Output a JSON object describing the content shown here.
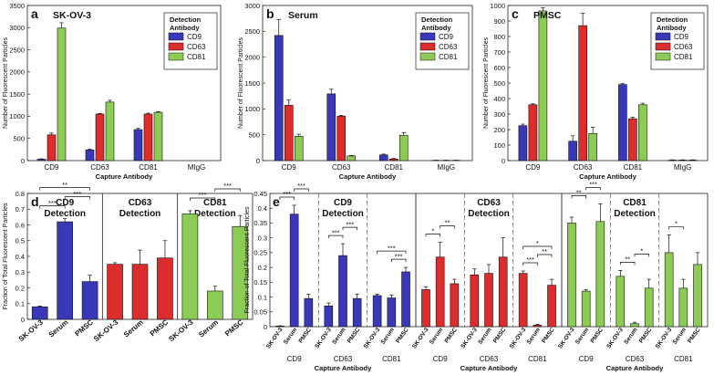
{
  "colors": {
    "CD9": "#3838b8",
    "CD63": "#dc2c2c",
    "CD81": "#8ccc54",
    "edge": "#1a1a1a"
  },
  "top_axis": {
    "xlabel": "Capture Antibody",
    "ylabel": "Number of Fluorescent Particles"
  },
  "bottom_axis": {
    "ylabel": "Fraction of Total Fluorescent Particles"
  },
  "chart_data": [
    {
      "panel": "a",
      "type": "bar",
      "title": "SK-OV-3",
      "categories": [
        "CD9",
        "CD63",
        "CD81",
        "MIgG"
      ],
      "ylim": [
        0,
        3500
      ],
      "yticks": [
        0,
        500,
        1000,
        1500,
        2000,
        2500,
        3000,
        3500
      ],
      "xlabel": "",
      "ylabel": "Number of Fluorescent Particles",
      "legend": {
        "title": "Detection Antibody",
        "entries": [
          "CD9",
          "CD63",
          "CD81"
        ],
        "placement": "top-right"
      },
      "series": [
        {
          "name": "CD9",
          "values": [
            30,
            240,
            700,
            0
          ],
          "errors": [
            10,
            15,
            25,
            0
          ]
        },
        {
          "name": "CD63",
          "values": [
            580,
            1050,
            1050,
            0
          ],
          "errors": [
            40,
            15,
            20,
            0
          ]
        },
        {
          "name": "CD81",
          "values": [
            2990,
            1320,
            1090,
            0
          ],
          "errors": [
            120,
            40,
            15,
            0
          ]
        }
      ]
    },
    {
      "panel": "b",
      "type": "bar",
      "title": "Serum",
      "categories": [
        "CD9",
        "CD63",
        "CD81",
        "MIgG"
      ],
      "ylim": [
        0,
        3000
      ],
      "yticks": [
        0,
        500,
        1000,
        1500,
        2000,
        2500,
        3000
      ],
      "xlabel": "Capture Antibody",
      "ylabel": "Number of Fluorescent Particles",
      "legend": {
        "title": "Detection Antibody",
        "entries": [
          "CD9",
          "CD63",
          "CD81"
        ],
        "placement": "top-right"
      },
      "series": [
        {
          "name": "CD9",
          "values": [
            2420,
            1290,
            110,
            5
          ],
          "errors": [
            310,
            90,
            15,
            3
          ]
        },
        {
          "name": "CD63",
          "values": [
            1070,
            860,
            30,
            5
          ],
          "errors": [
            100,
            15,
            10,
            3
          ]
        },
        {
          "name": "CD81",
          "values": [
            470,
            90,
            490,
            5
          ],
          "errors": [
            40,
            10,
            50,
            3
          ]
        }
      ]
    },
    {
      "panel": "c",
      "type": "bar",
      "title": "PMSC",
      "categories": [
        "CD9",
        "CD63",
        "CD81",
        "MIgG"
      ],
      "ylim": [
        0,
        1000
      ],
      "yticks": [
        0,
        100,
        200,
        300,
        400,
        500,
        600,
        700,
        800,
        900,
        1000
      ],
      "xlabel": "",
      "ylabel": "Number of Fluorescent Particles",
      "legend": {
        "title": "Detection Antibody",
        "entries": [
          "CD9",
          "CD63",
          "CD81"
        ],
        "placement": "top-right"
      },
      "series": [
        {
          "name": "CD9",
          "values": [
            225,
            125,
            490,
            3
          ],
          "errors": [
            10,
            35,
            6,
            2
          ]
        },
        {
          "name": "CD63",
          "values": [
            360,
            870,
            270,
            3
          ],
          "errors": [
            6,
            80,
            10,
            2
          ]
        },
        {
          "name": "CD81",
          "values": [
            965,
            175,
            360,
            3
          ],
          "errors": [
            20,
            40,
            10,
            2
          ]
        }
      ]
    },
    {
      "panel": "d",
      "type": "bar",
      "ylim": [
        0,
        0.8
      ],
      "yticks": [
        0,
        0.1,
        0.2,
        0.3,
        0.4,
        0.5,
        0.6,
        0.7,
        0.8
      ],
      "ylabel": "Fraction of Total Fluorescent Particles",
      "groups": [
        {
          "title": "CD9\nDetection",
          "color": "CD9",
          "categories": [
            "SK-OV-3",
            "Serum",
            "PMSC"
          ],
          "values": [
            0.08,
            0.62,
            0.24
          ],
          "errors": [
            0.005,
            0.02,
            0.04
          ],
          "sig": [
            {
              "a": 0,
              "b": 1,
              "label": "***"
            },
            {
              "a": 1,
              "b": 2,
              "label": "***"
            },
            {
              "a": 0,
              "b": 2,
              "label": "**"
            }
          ]
        },
        {
          "title": "CD63\nDetection",
          "color": "CD63",
          "categories": [
            "SK-OV-3",
            "Serum",
            "PMSC"
          ],
          "values": [
            0.35,
            0.35,
            0.39
          ],
          "errors": [
            0.01,
            0.09,
            0.11
          ],
          "sig": []
        },
        {
          "title": "CD81\nDetection",
          "color": "CD81",
          "categories": [
            "SK-OV-3",
            "Serum",
            "PMSC"
          ],
          "values": [
            0.67,
            0.18,
            0.59
          ],
          "errors": [
            0.02,
            0.03,
            0.07
          ],
          "sig": [
            {
              "a": 0,
              "b": 1,
              "label": "***"
            },
            {
              "a": 1,
              "b": 2,
              "label": "***"
            }
          ]
        }
      ]
    },
    {
      "panel": "e",
      "type": "bar",
      "ylim": [
        0,
        0.45
      ],
      "yticks": [
        0,
        0.05,
        0.1,
        0.15,
        0.2,
        0.25,
        0.3,
        0.35,
        0.4,
        0.45
      ],
      "xlabel": "Capture Antibody",
      "ylabel": "Fraction of Total Fluorescent Particles",
      "bar_labels": [
        "SK-OV-3",
        "Serum",
        "PMSC"
      ],
      "panels": [
        {
          "title": "CD9\nDetection",
          "color": "CD9",
          "groups": [
            {
              "name": "CD9",
              "values": [
                0.002,
                0.38,
                0.095
              ],
              "errors": [
                0.001,
                0.03,
                0.015
              ],
              "sig": [
                {
                  "a": 0,
                  "b": 1,
                  "label": "***"
                },
                {
                  "a": 1,
                  "b": 2,
                  "label": "***"
                }
              ]
            },
            {
              "name": "CD63",
              "values": [
                0.07,
                0.24,
                0.095
              ],
              "errors": [
                0.01,
                0.04,
                0.015
              ],
              "sig": [
                {
                  "a": 0,
                  "b": 1,
                  "label": "***"
                },
                {
                  "a": 1,
                  "b": 2,
                  "label": "***"
                }
              ]
            },
            {
              "name": "CD81",
              "values": [
                0.105,
                0.097,
                0.185
              ],
              "errors": [
                0.005,
                0.01,
                0.015
              ],
              "sig": [
                {
                  "a": 1,
                  "b": 2,
                  "label": "***"
                },
                {
                  "a": 0,
                  "b": 2,
                  "label": "***"
                }
              ]
            }
          ]
        },
        {
          "title": "CD63\nDetection",
          "color": "CD63",
          "groups": [
            {
              "name": "CD9",
              "values": [
                0.125,
                0.235,
                0.145
              ],
              "errors": [
                0.01,
                0.05,
                0.015
              ],
              "sig": [
                {
                  "a": 0,
                  "b": 1,
                  "label": "*"
                },
                {
                  "a": 1,
                  "b": 2,
                  "label": "**"
                }
              ]
            },
            {
              "name": "CD63",
              "values": [
                0.175,
                0.18,
                0.235
              ],
              "errors": [
                0.02,
                0.03,
                0.065
              ],
              "sig": []
            },
            {
              "name": "CD81",
              "values": [
                0.18,
                0.005,
                0.14
              ],
              "errors": [
                0.008,
                0.003,
                0.02
              ],
              "sig": [
                {
                  "a": 0,
                  "b": 1,
                  "label": "***"
                },
                {
                  "a": 1,
                  "b": 2,
                  "label": "**"
                },
                {
                  "a": 0,
                  "b": 2,
                  "label": "*"
                }
              ]
            }
          ]
        },
        {
          "title": "CD81\nDetection",
          "color": "CD81",
          "groups": [
            {
              "name": "CD9",
              "values": [
                0.35,
                0.12,
                0.355
              ],
              "errors": [
                0.02,
                0.005,
                0.06
              ],
              "sig": [
                {
                  "a": 0,
                  "b": 1,
                  "label": "**"
                },
                {
                  "a": 1,
                  "b": 2,
                  "label": "***"
                }
              ]
            },
            {
              "name": "CD63",
              "values": [
                0.17,
                0.01,
                0.13
              ],
              "errors": [
                0.02,
                0.005,
                0.03
              ],
              "sig": [
                {
                  "a": 0,
                  "b": 1,
                  "label": "**"
                },
                {
                  "a": 1,
                  "b": 2,
                  "label": "*"
                }
              ]
            },
            {
              "name": "CD81",
              "values": [
                0.25,
                0.13,
                0.21
              ],
              "errors": [
                0.06,
                0.03,
                0.04
              ],
              "sig": [
                {
                  "a": 0,
                  "b": 1,
                  "label": "*"
                }
              ]
            }
          ]
        }
      ]
    }
  ]
}
